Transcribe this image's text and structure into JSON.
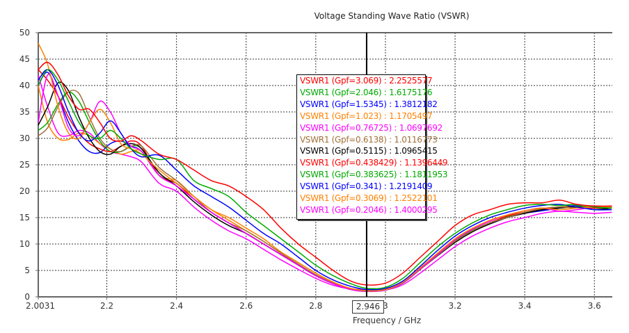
{
  "chart_data": {
    "type": "line",
    "title": "Voltage Standing Wave Ratio (VSWR)",
    "xlabel": "Frequency / GHz",
    "ylabel": "",
    "xlim": [
      2.0031,
      3.65
    ],
    "ylim": [
      0,
      50
    ],
    "x_ticks": [
      "2.0031",
      "2.2",
      "2.4",
      "2.6",
      "2.8",
      "3",
      "3.2",
      "3.4",
      "3.6"
    ],
    "x_tick_values": [
      2.0031,
      2.2,
      2.4,
      2.6,
      2.8,
      3.0,
      3.2,
      3.4,
      3.6
    ],
    "y_ticks": [
      "0",
      "5",
      "10",
      "15",
      "20",
      "25",
      "30",
      "35",
      "40",
      "45",
      "50"
    ],
    "y_tick_values": [
      0,
      5,
      10,
      15,
      20,
      25,
      30,
      35,
      40,
      45,
      50
    ],
    "grid": true,
    "marker": {
      "x": 2.946,
      "label": "2.946"
    },
    "x": [
      2.0031,
      2.03,
      2.06,
      2.09,
      2.12,
      2.15,
      2.18,
      2.21,
      2.24,
      2.27,
      2.3,
      2.35,
      2.4,
      2.45,
      2.5,
      2.55,
      2.6,
      2.65,
      2.7,
      2.75,
      2.8,
      2.85,
      2.9,
      2.946,
      3.0,
      3.05,
      3.1,
      3.15,
      3.2,
      3.25,
      3.3,
      3.35,
      3.4,
      3.45,
      3.5,
      3.55,
      3.6,
      3.65
    ],
    "series": [
      {
        "name": "VSWR1 (Gpf=3.069)",
        "value_at_marker": "2.2525577",
        "color": "#ff0000",
        "values": [
          43,
          44.4,
          42,
          38,
          35.5,
          35.5,
          33,
          30,
          29.5,
          30.5,
          29.5,
          27,
          26,
          24,
          22,
          21,
          19,
          16.5,
          13,
          10,
          7.5,
          5,
          3,
          2.25,
          2.6,
          4.5,
          7.5,
          10.5,
          13.5,
          15.5,
          16.5,
          17.5,
          17.8,
          17.8,
          18.3,
          17.5,
          17.2,
          17.2
        ]
      },
      {
        "name": "VSWR1 (Gpf=2.046)",
        "value_at_marker": "1.6175176",
        "color": "#00aa00",
        "values": [
          40,
          43,
          41,
          37,
          33,
          30.5,
          30,
          31.5,
          30,
          28,
          27,
          26,
          26,
          22,
          20.5,
          19,
          16,
          13.5,
          11,
          8.5,
          6,
          4,
          2.5,
          1.62,
          1.8,
          3.5,
          6.5,
          9.5,
          12,
          14,
          15.5,
          16.5,
          17.3,
          17.5,
          17.3,
          17.5,
          17,
          16.8
        ]
      },
      {
        "name": "VSWR1 (Gpf=1.5345)",
        "value_at_marker": "1.3812182",
        "color": "#0000ff",
        "values": [
          41,
          43,
          40,
          35,
          31,
          29.5,
          31,
          33.3,
          31,
          28,
          26.5,
          26.8,
          24,
          21,
          19,
          17,
          14.5,
          12,
          10,
          7.5,
          5,
          3.2,
          2,
          1.38,
          1.6,
          3,
          5.8,
          8.8,
          11.5,
          13.5,
          15,
          16,
          16.8,
          17.3,
          17.5,
          17,
          16.5,
          16.5
        ]
      },
      {
        "name": "VSWR1 (Gpf=1.023)",
        "value_at_marker": "1.1705497",
        "color": "#ff8000",
        "values": [
          48,
          44,
          36,
          31,
          30,
          33,
          35.5,
          33,
          29,
          28,
          27,
          24,
          21.5,
          19,
          16.5,
          15,
          13,
          11,
          8.5,
          6.5,
          4.5,
          2.8,
          1.6,
          1.17,
          1.4,
          2.8,
          5.5,
          8.3,
          11,
          13,
          14.5,
          15.5,
          16.3,
          16.8,
          16.5,
          16.8,
          17,
          17
        ]
      },
      {
        "name": "VSWR1 (Gpf=0.76725)",
        "value_at_marker": "1.0697692",
        "color": "#ff00ff",
        "values": [
          33,
          42,
          38,
          32,
          30.5,
          33,
          37,
          35,
          31,
          28.5,
          27.5,
          23,
          21,
          18.5,
          16,
          14,
          12,
          10,
          8,
          6,
          4,
          2.5,
          1.4,
          1.07,
          1.3,
          2.7,
          5.3,
          8,
          10.8,
          12.8,
          14.3,
          15.5,
          16.3,
          16.8,
          16.2,
          16.5,
          17,
          17
        ]
      },
      {
        "name": "VSWR1 (Gpf=0.6138)",
        "value_at_marker": "1.0116773",
        "color": "#a0703a",
        "values": [
          30.5,
          32,
          36,
          38.8,
          38.5,
          34,
          30,
          28,
          27.5,
          28.5,
          28.5,
          24.5,
          22,
          19,
          16,
          14,
          12.5,
          10.5,
          8.3,
          6.2,
          4.2,
          2.6,
          1.4,
          1.01,
          1.25,
          2.6,
          5.2,
          7.9,
          10.5,
          12.5,
          14,
          15,
          16,
          16.7,
          17,
          16.8,
          17,
          16.8
        ]
      },
      {
        "name": "VSWR1 (Gpf=0.5115)",
        "value_at_marker": "1.0965415",
        "color": "#000000",
        "values": [
          32.5,
          36,
          40.5,
          39,
          34,
          30,
          27.5,
          27,
          28.5,
          29,
          28,
          23.5,
          21,
          18,
          15.5,
          13.5,
          12,
          10,
          8,
          6,
          4,
          2.5,
          1.4,
          1.1,
          1.3,
          2.6,
          5.2,
          7.8,
          10.3,
          12.3,
          13.8,
          15,
          15.8,
          16.5,
          16.8,
          17,
          16.5,
          16.8
        ]
      },
      {
        "name": "VSWR1 (Gpf=0.438429)",
        "value_at_marker": "1.1396449",
        "color": "#ff0000",
        "values": [
          43,
          41,
          38,
          34,
          31,
          29,
          28,
          27.5,
          28.5,
          29.5,
          28.5,
          23,
          21.5,
          18.5,
          16,
          14,
          12,
          10,
          8,
          6,
          4,
          2.5,
          1.5,
          1.14,
          1.35,
          2.7,
          5.3,
          8,
          10.5,
          12.5,
          14,
          15.3,
          16,
          16.5,
          17,
          17,
          16.8,
          17
        ]
      },
      {
        "name": "VSWR1 (Gpf=0.383625)",
        "value_at_marker": "1.1811953",
        "color": "#00aa00",
        "values": [
          31.5,
          33,
          36.5,
          38.8,
          37,
          33,
          29.5,
          27.5,
          27.5,
          28.5,
          28,
          23,
          21.5,
          18.5,
          16,
          14,
          12,
          10,
          8,
          6,
          4,
          2.5,
          1.5,
          1.18,
          1.4,
          2.8,
          5.4,
          8.1,
          10.6,
          12.6,
          14,
          15.2,
          16,
          16.6,
          17,
          17.2,
          16.8,
          16.8
        ]
      },
      {
        "name": "VSWR1 (Gpf=0.341)",
        "value_at_marker": "1.2191409",
        "color": "#0000ff",
        "values": [
          40,
          42.5,
          38,
          33,
          29.5,
          27.5,
          27.3,
          29,
          29.5,
          28.5,
          27.5,
          23,
          21.5,
          18.5,
          16,
          14,
          12,
          10,
          8,
          6,
          4,
          2.5,
          1.5,
          1.22,
          1.45,
          2.8,
          5.3,
          8,
          10.4,
          12.4,
          13.8,
          15,
          15.8,
          16.3,
          16.8,
          17.3,
          16.5,
          16.8
        ]
      },
      {
        "name": "VSWR1 (Gpf=0.3069)",
        "value_at_marker": "1.2522101",
        "color": "#ff8000",
        "values": [
          40,
          33,
          30,
          29.8,
          31,
          30.5,
          29,
          28,
          27,
          27.5,
          27.5,
          23,
          22,
          19,
          16.5,
          14.5,
          12.5,
          10.5,
          8.3,
          6.2,
          4.2,
          2.7,
          1.6,
          1.25,
          1.5,
          2.9,
          5.5,
          8.2,
          10.6,
          12.6,
          14,
          15.2,
          16,
          16.5,
          16.8,
          17,
          17.2,
          17
        ]
      },
      {
        "name": "VSWR1 (Gpf=0.2046)",
        "value_at_marker": "1.4000295",
        "color": "#ff00ff",
        "values": [
          42,
          36,
          31,
          30.5,
          31.5,
          31,
          29,
          27.5,
          27,
          26.5,
          25.5,
          21.5,
          20,
          17,
          14.5,
          12.5,
          11,
          9,
          7,
          5.2,
          3.5,
          2.2,
          1.5,
          1.4,
          1.3,
          2.3,
          4.5,
          7,
          9.5,
          11.5,
          13,
          14.2,
          15,
          15.8,
          16.2,
          16,
          15.8,
          16
        ]
      }
    ]
  }
}
